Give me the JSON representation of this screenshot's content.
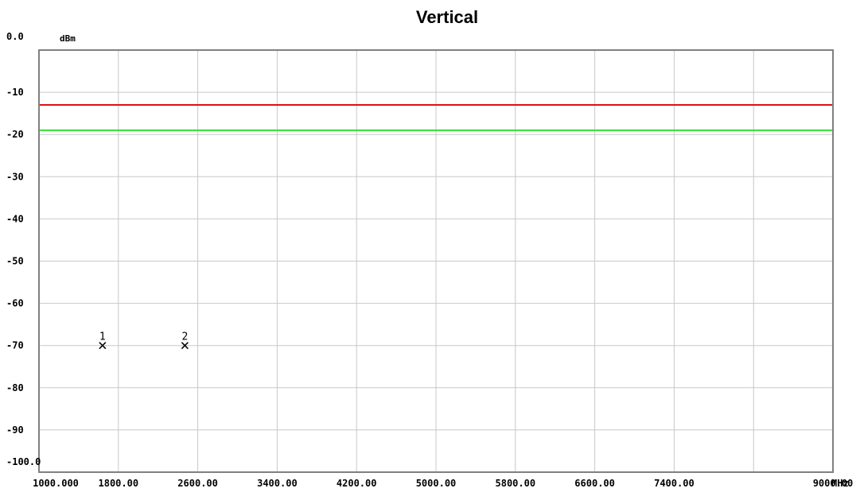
{
  "chart_data": {
    "type": "line",
    "title": "Vertical",
    "ylabel": "dBm",
    "xunit": "MHz",
    "ylim": [
      -100,
      0
    ],
    "y_ticks": [
      0,
      -10,
      -20,
      -30,
      -40,
      -50,
      -60,
      -70,
      -80,
      -90,
      -100
    ],
    "y_tick_labels": [
      "0.0",
      "-10",
      "-20",
      "-30",
      "-40",
      "-50",
      "-60",
      "-70",
      "-80",
      "-90",
      "-100.0"
    ],
    "xlim": [
      1000,
      9000
    ],
    "x_ticks": [
      1000,
      1800,
      2600,
      3400,
      4200,
      5000,
      5800,
      6600,
      7400,
      9000
    ],
    "x_tick_labels": [
      "1000.000",
      "1800.00",
      "2600.00",
      "3400.00",
      "4200.00",
      "5000.00",
      "5800.00",
      "6600.00",
      "7400.00",
      "9000.00"
    ],
    "x_grid": [
      1000,
      1800,
      2600,
      3400,
      4200,
      5000,
      5800,
      6600,
      7400,
      8200,
      9000
    ],
    "grid": true,
    "series": [
      {
        "values": [
          -13,
          -13
        ],
        "x": [
          1000,
          9000
        ],
        "color": "#e01010"
      },
      {
        "values": [
          -19,
          -19
        ],
        "x": [
          1000,
          9000
        ],
        "color": "#30e030"
      }
    ],
    "markers": [
      {
        "label": "1",
        "x": 1640,
        "y": -70
      },
      {
        "label": "2",
        "x": 2470,
        "y": -70
      }
    ]
  }
}
